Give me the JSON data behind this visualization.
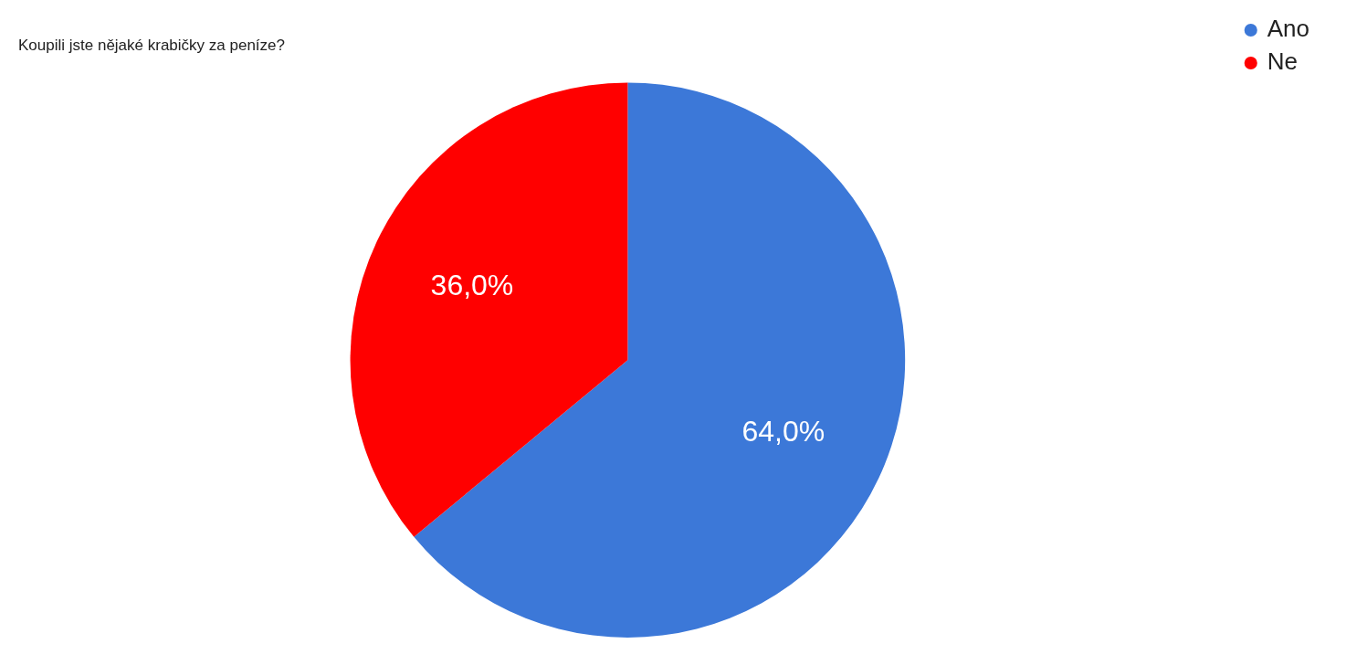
{
  "chart_data": {
    "type": "pie",
    "title": "Koupili jste nějaké krabičky za peníze?",
    "categories": [
      "Ano",
      "Ne"
    ],
    "values": [
      64.0,
      36.0
    ],
    "colors": [
      "#3c78d8",
      "#ff0000"
    ],
    "value_labels": [
      "64,0%",
      "36,0%"
    ],
    "legend": "top right"
  }
}
